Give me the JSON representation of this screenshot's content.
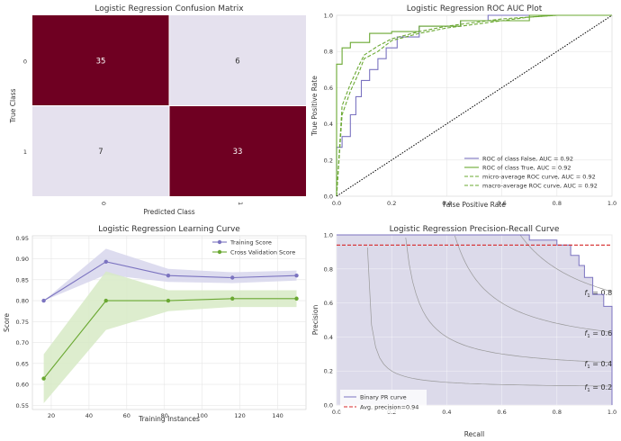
{
  "colors": {
    "dark_cell": "#6f0022",
    "light_cell": "#e5e1ee",
    "purple": "#7b73c0",
    "green": "#6aa832",
    "green_fill": "#d7eac6",
    "purple_fill": "#d7d6ec",
    "red_dash": "#d62728",
    "pr_fill": "#dcdaea",
    "chance": "#000000"
  },
  "chart_data": [
    {
      "type": "heatmap",
      "title": "Logistic Regression Confusion Matrix",
      "xlabel": "Predicted Class",
      "ylabel": "True Class",
      "x_ticks": [
        "0",
        "1"
      ],
      "y_ticks": [
        "0",
        "1"
      ],
      "matrix": [
        [
          35,
          6
        ],
        [
          7,
          33
        ]
      ]
    },
    {
      "type": "line",
      "title": "Logistic Regression ROC AUC Plot",
      "xlabel": "False Positive Rate",
      "ylabel": "True Positive Rate",
      "xlim": [
        0,
        1
      ],
      "ylim": [
        0,
        1
      ],
      "x_ticks": [
        "0.0",
        "0.2",
        "0.4",
        "0.6",
        "0.8",
        "1.0"
      ],
      "y_ticks": [
        "0.0",
        "0.2",
        "0.4",
        "0.6",
        "0.8",
        "1.0"
      ],
      "series": [
        {
          "name": "ROC of class False, AUC = 0.92",
          "style": "solid",
          "color": "#7b73c0",
          "x": [
            0,
            0,
            0.02,
            0.02,
            0.05,
            0.05,
            0.07,
            0.07,
            0.09,
            0.09,
            0.12,
            0.12,
            0.15,
            0.15,
            0.18,
            0.18,
            0.22,
            0.22,
            0.3,
            0.3,
            0.45,
            0.45,
            0.55,
            0.55,
            1.0
          ],
          "y": [
            0,
            0.27,
            0.27,
            0.33,
            0.33,
            0.45,
            0.45,
            0.55,
            0.55,
            0.64,
            0.64,
            0.7,
            0.7,
            0.76,
            0.76,
            0.82,
            0.82,
            0.88,
            0.88,
            0.94,
            0.94,
            0.97,
            0.97,
            1.0,
            1.0
          ]
        },
        {
          "name": "ROC of class True, AUC = 0.92",
          "style": "solid",
          "color": "#6aa832",
          "x": [
            0,
            0,
            0.02,
            0.02,
            0.05,
            0.05,
            0.12,
            0.12,
            0.2,
            0.2,
            0.3,
            0.3,
            0.45,
            0.45,
            0.55,
            0.55,
            0.7,
            0.7,
            0.85,
            0.85,
            1.0
          ],
          "y": [
            0,
            0.73,
            0.73,
            0.82,
            0.82,
            0.85,
            0.85,
            0.9,
            0.9,
            0.91,
            0.91,
            0.94,
            0.94,
            0.97,
            0.97,
            0.97,
            0.97,
            1.0,
            1.0,
            1.0,
            1.0
          ]
        },
        {
          "name": "micro-average ROC curve, AUC = 0.92",
          "style": "dashed",
          "color": "#6aa832",
          "x": [
            0,
            0.02,
            0.05,
            0.08,
            0.1,
            0.15,
            0.2,
            0.3,
            0.4,
            0.5,
            0.6,
            0.7,
            0.8,
            0.9,
            1.0
          ],
          "y": [
            0,
            0.5,
            0.62,
            0.72,
            0.78,
            0.83,
            0.87,
            0.91,
            0.94,
            0.96,
            0.98,
            0.99,
            1.0,
            1.0,
            1.0
          ]
        },
        {
          "name": "macro-average ROC curve, AUC = 0.92",
          "style": "dashed",
          "color": "#6aa832",
          "x": [
            0,
            0.02,
            0.05,
            0.08,
            0.1,
            0.15,
            0.2,
            0.3,
            0.4,
            0.5,
            0.6,
            0.7,
            0.8,
            0.9,
            1.0
          ],
          "y": [
            0,
            0.45,
            0.58,
            0.68,
            0.76,
            0.8,
            0.86,
            0.9,
            0.93,
            0.95,
            0.97,
            0.99,
            1.0,
            1.0,
            1.0
          ]
        },
        {
          "name": "",
          "style": "dotted",
          "color": "#000000",
          "x": [
            0,
            1
          ],
          "y": [
            0,
            1
          ]
        }
      ]
    },
    {
      "type": "line",
      "title": "Logistic Regression Learning Curve",
      "xlabel": "Training Instances",
      "ylabel": "Score",
      "xlim": [
        10,
        155
      ],
      "ylim": [
        0.54,
        0.955
      ],
      "x_ticks": [
        20,
        40,
        60,
        80,
        100,
        120,
        140
      ],
      "y_ticks": [
        "0.55",
        "0.60",
        "0.65",
        "0.70",
        "0.75",
        "0.80",
        "0.85",
        "0.90",
        "0.95"
      ],
      "x": [
        16,
        49,
        82,
        116,
        150
      ],
      "series": [
        {
          "name": "Training Score",
          "color": "#7b73c0",
          "values": [
            0.8,
            0.893,
            0.86,
            0.855,
            0.86
          ],
          "lower": [
            0.8,
            0.862,
            0.845,
            0.842,
            0.848
          ],
          "upper": [
            0.8,
            0.924,
            0.876,
            0.868,
            0.872
          ]
        },
        {
          "name": "Cross Validation Score",
          "color": "#6aa832",
          "values": [
            0.614,
            0.8,
            0.8,
            0.805,
            0.805
          ],
          "lower": [
            0.555,
            0.73,
            0.775,
            0.785,
            0.785
          ],
          "upper": [
            0.672,
            0.87,
            0.825,
            0.825,
            0.825
          ]
        }
      ]
    },
    {
      "type": "area",
      "title": "Logistic Regression Precision-Recall Curve",
      "xlabel": "Recall",
      "ylabel": "Precision",
      "xlim": [
        0,
        1
      ],
      "ylim": [
        0,
        1
      ],
      "x_ticks": [
        "0.0",
        "0.2",
        "0.4",
        "0.6",
        "0.8",
        "1.0"
      ],
      "y_ticks": [
        "0.0",
        "0.2",
        "0.4",
        "0.6",
        "0.8",
        "1.0"
      ],
      "pr_curve": {
        "name": "Binary PR curve",
        "recall": [
          0,
          0.7,
          0.7,
          0.8,
          0.8,
          0.85,
          0.85,
          0.88,
          0.88,
          0.9,
          0.9,
          0.93,
          0.93,
          0.97,
          0.97,
          1.0,
          1.0
        ],
        "precision": [
          1.0,
          1.0,
          0.97,
          0.97,
          0.94,
          0.94,
          0.88,
          0.88,
          0.82,
          0.82,
          0.75,
          0.75,
          0.65,
          0.65,
          0.58,
          0.58,
          0.0
        ]
      },
      "avg_precision": {
        "name": "Avg. precision=0.94",
        "value": 0.94
      },
      "iso_f1": [
        {
          "f": 0.2,
          "label": "f1 = 0.2"
        },
        {
          "f": 0.4,
          "label": "f1 = 0.4"
        },
        {
          "f": 0.6,
          "label": "f1 = 0.6"
        },
        {
          "f": 0.8,
          "label": "f1 = 0.8"
        }
      ]
    }
  ]
}
